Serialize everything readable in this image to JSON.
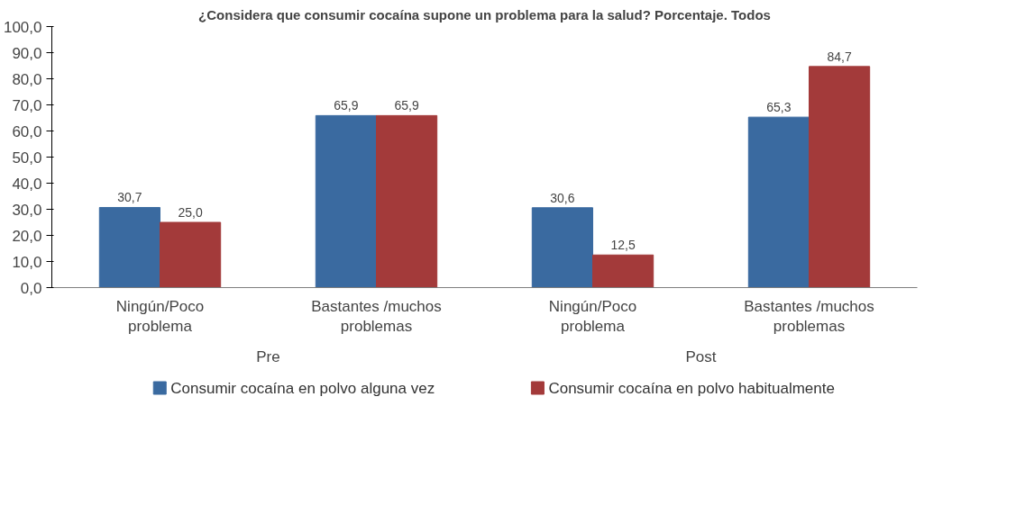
{
  "chart_data": {
    "type": "bar",
    "title": "¿Considera que consumir cocaína supone un problema para la salud? Porcentaje. Todos",
    "categories": [
      "Ningún/Poco problema",
      "Bastantes /muchos problemas",
      "Ningún/Poco problema",
      "Bastantes /muchos problemas"
    ],
    "annotations": [
      "Pre",
      "Post"
    ],
    "series": [
      {
        "name": "Consumir cocaína en polvo alguna vez",
        "color": "#3a6aa0",
        "values": [
          30.7,
          65.9,
          30.6,
          65.3
        ],
        "value_labels": [
          "30,7",
          "65,9",
          "30,6",
          "65,3"
        ]
      },
      {
        "name": "Consumir cocaína en polvo habitualmente",
        "color": "#a33a3a",
        "values": [
          25.0,
          65.9,
          12.5,
          84.7
        ],
        "value_labels": [
          "25,0",
          "65,9",
          "12,5",
          "84,7"
        ]
      }
    ],
    "ylim": [
      0,
      100
    ],
    "yticks": [
      {
        "value": 0,
        "label": "0,0"
      },
      {
        "value": 10,
        "label": "10,0"
      },
      {
        "value": 20,
        "label": "20,0"
      },
      {
        "value": 30,
        "label": "30,0"
      },
      {
        "value": 40,
        "label": "40,0"
      },
      {
        "value": 50,
        "label": "50,0"
      },
      {
        "value": 60,
        "label": "60,0"
      },
      {
        "value": 70,
        "label": "70,0"
      },
      {
        "value": 80,
        "label": "80,0"
      },
      {
        "value": 90,
        "label": "90,0"
      },
      {
        "value": 100,
        "label": "100,0"
      }
    ],
    "grid": false,
    "legend": "bottom"
  }
}
